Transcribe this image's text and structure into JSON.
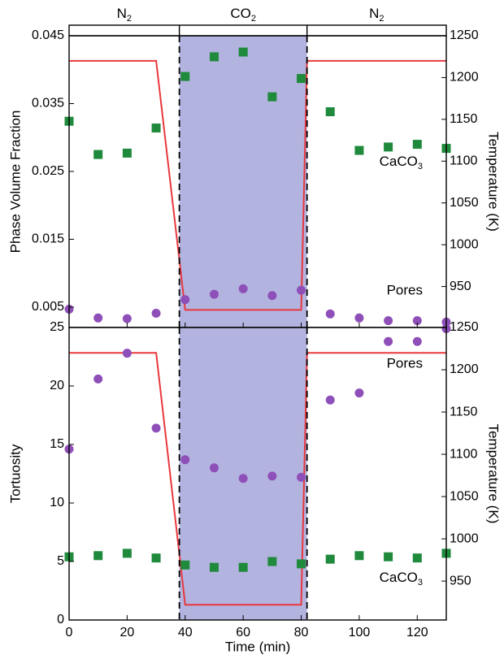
{
  "gas_labels": {
    "left": {
      "base": "N",
      "sub": "2"
    },
    "middle": {
      "base": "CO",
      "sub": "2"
    },
    "right": {
      "base": "N",
      "sub": "2"
    }
  },
  "colors": {
    "shade": "#b3b3e0",
    "temperature": "#e8383d",
    "caco3": "#1f8a3c",
    "pores": "#8e4fb8"
  },
  "chart_data": [
    {
      "type": "scatter",
      "panel": "top",
      "xlim": [
        0,
        130
      ],
      "ylim": [
        0.002,
        0.045
      ],
      "ylabel": "Phase Volume Fraction",
      "y2label": "Temperature (K)",
      "y2lim": [
        901,
        1250
      ],
      "yticks": [
        "0.005",
        "0.015",
        "0.025",
        "0.035",
        "0.045"
      ],
      "y2ticks": [
        "950",
        "1000",
        "1050",
        "1100",
        "1150",
        "1200",
        "1250"
      ],
      "shaded_x": [
        38,
        82
      ],
      "series": [
        {
          "name": "CaCO",
          "subscript": "3",
          "marker": "square",
          "color": "#1f8a3c",
          "x": [
            0,
            10,
            20,
            30,
            40,
            50,
            60,
            70,
            80,
            90,
            100,
            110,
            120,
            130
          ],
          "y": [
            0.0324,
            0.0275,
            0.0277,
            0.0314,
            0.039,
            0.0419,
            0.0426,
            0.036,
            0.0387,
            0.0338,
            0.0281,
            0.0286,
            0.029,
            0.0284
          ]
        },
        {
          "name": "Pores",
          "marker": "circle",
          "color": "#8e4fb8",
          "x": [
            0,
            10,
            20,
            30,
            40,
            50,
            60,
            70,
            80,
            90,
            100,
            110,
            120,
            130
          ],
          "y": [
            0.0047,
            0.0034,
            0.0033,
            0.0041,
            0.0061,
            0.0069,
            0.0077,
            0.0067,
            0.0075,
            0.004,
            0.0034,
            0.003,
            0.003,
            0.0028
          ]
        }
      ],
      "temperature": {
        "x": [
          0,
          30,
          40,
          80,
          82,
          130
        ],
        "y": [
          1220,
          1220,
          922,
          922,
          1220,
          1220
        ]
      }
    },
    {
      "type": "scatter",
      "panel": "bottom",
      "xlim": [
        0,
        130
      ],
      "ylim": [
        0,
        25
      ],
      "ylabel": "Tortuosity",
      "xlabel": "Time (min)",
      "y2label": "Temperature (K)",
      "y2lim": [
        904,
        1250
      ],
      "yticks": [
        "0",
        "5",
        "10",
        "15",
        "20",
        "25"
      ],
      "y2ticks": [
        "950",
        "1000",
        "1050",
        "1100",
        "1150",
        "1200",
        "1250"
      ],
      "xticks": [
        "0",
        "20",
        "40",
        "60",
        "80",
        "100",
        "120"
      ],
      "shaded_x": [
        38,
        82
      ],
      "series": [
        {
          "name": "Pores",
          "marker": "circle",
          "color": "#8e4fb8",
          "x": [
            0,
            10,
            20,
            30,
            40,
            50,
            60,
            70,
            80,
            90,
            100,
            110,
            120,
            130
          ],
          "y": [
            14.6,
            20.6,
            22.8,
            16.4,
            13.7,
            13.0,
            12.1,
            12.3,
            12.2,
            18.8,
            19.4,
            23.8,
            23.8,
            24.9
          ]
        },
        {
          "name": "CaCO",
          "subscript": "3",
          "marker": "square",
          "color": "#1f8a3c",
          "x": [
            0,
            10,
            20,
            30,
            40,
            50,
            60,
            70,
            80,
            90,
            100,
            110,
            120,
            130
          ],
          "y": [
            5.4,
            5.5,
            5.7,
            5.3,
            4.7,
            4.5,
            4.5,
            5.0,
            4.8,
            5.2,
            5.5,
            5.4,
            5.3,
            5.7
          ]
        }
      ],
      "temperature": {
        "x": [
          0,
          30,
          40,
          80,
          82,
          130
        ],
        "y": [
          1220,
          1220,
          922,
          922,
          1220,
          1220
        ]
      }
    }
  ]
}
